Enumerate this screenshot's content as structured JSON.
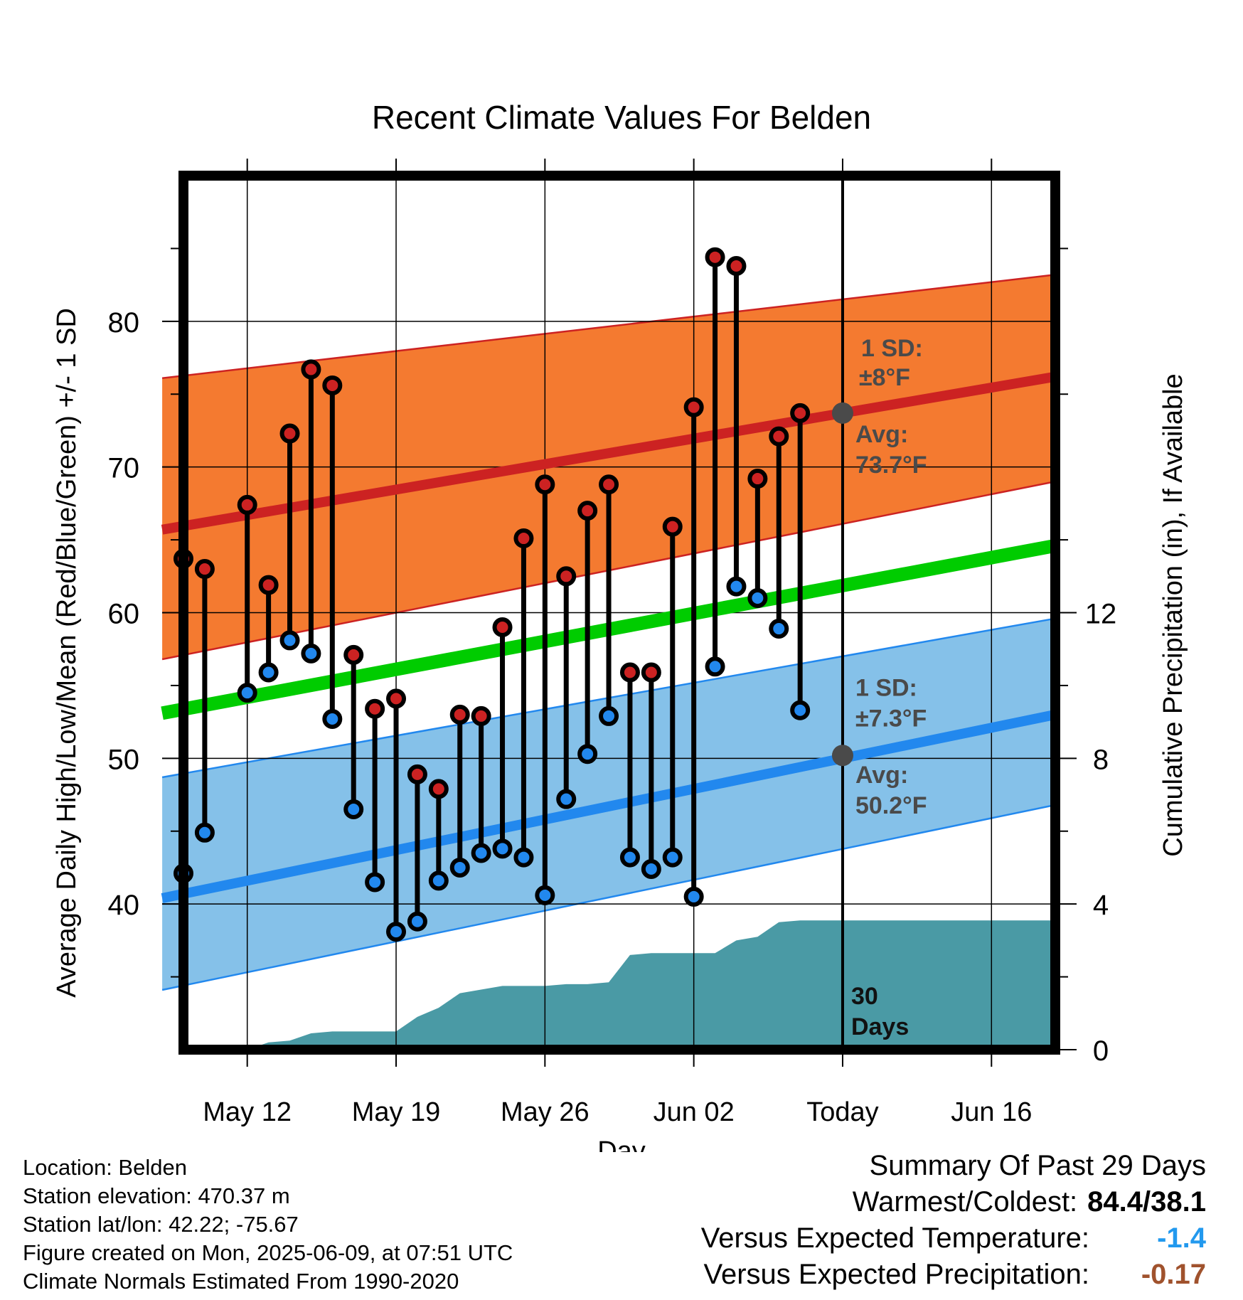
{
  "chart_data": {
    "type": "line",
    "title": "Recent Climate Values For Belden",
    "xlabel": "Day",
    "ylabel": "Average Daily High/Low/Mean (Red/Blue/Green) +/- 1 SD",
    "y2label": "Cumulative Precipitation (in), If Available",
    "xlim": [
      "May 08",
      "Jun 19"
    ],
    "ylim": [
      30,
      90
    ],
    "y2lim": [
      0,
      24
    ],
    "grid": true,
    "x_ticks": [
      "May 12",
      "May 19",
      "May 26",
      "Jun 02",
      "Today",
      "Jun 16"
    ],
    "y_ticks": [
      40,
      50,
      60,
      70,
      80
    ],
    "y2_ticks": [
      0,
      4,
      8,
      12
    ],
    "today": "Jun 09",
    "dates": [
      "May 09",
      "May 10",
      "May 11",
      "May 12",
      "May 13",
      "May 14",
      "May 15",
      "May 16",
      "May 17",
      "May 18",
      "May 19",
      "May 20",
      "May 21",
      "May 22",
      "May 23",
      "May 24",
      "May 25",
      "May 26",
      "May 27",
      "May 28",
      "May 29",
      "May 30",
      "May 31",
      "Jun 01",
      "Jun 02",
      "Jun 03",
      "Jun 04",
      "Jun 05",
      "Jun 06",
      "Jun 07",
      "Jun 08",
      "Jun 09",
      "Jun 10",
      "Jun 11",
      "Jun 12",
      "Jun 13",
      "Jun 14",
      "Jun 15",
      "Jun 16",
      "Jun 17",
      "Jun 18",
      "Jun 19"
    ],
    "observations": [
      {
        "date": "May 09",
        "high": 63.7,
        "low": 42.1
      },
      {
        "date": "May 10",
        "high": 63.0,
        "low": 44.9
      },
      {
        "date": "May 12",
        "high": 67.4,
        "low": 54.5
      },
      {
        "date": "May 13",
        "high": 61.9,
        "low": 55.9
      },
      {
        "date": "May 14",
        "high": 72.3,
        "low": 58.1
      },
      {
        "date": "May 15",
        "high": 76.7,
        "low": 57.2
      },
      {
        "date": "May 16",
        "high": 75.6,
        "low": 52.7
      },
      {
        "date": "May 17",
        "high": 57.1,
        "low": 46.5
      },
      {
        "date": "May 18",
        "high": 53.4,
        "low": 41.5
      },
      {
        "date": "May 19",
        "high": 54.1,
        "low": 38.1
      },
      {
        "date": "May 20",
        "high": 48.9,
        "low": 38.8
      },
      {
        "date": "May 21",
        "high": 47.9,
        "low": 41.6
      },
      {
        "date": "May 22",
        "high": 53.0,
        "low": 42.5
      },
      {
        "date": "May 23",
        "high": 52.9,
        "low": 43.5
      },
      {
        "date": "May 24",
        "high": 59.0,
        "low": 43.8
      },
      {
        "date": "May 25",
        "high": 65.1,
        "low": 43.2
      },
      {
        "date": "May 26",
        "high": 68.8,
        "low": 40.6
      },
      {
        "date": "May 27",
        "high": 62.5,
        "low": 47.2
      },
      {
        "date": "May 28",
        "high": 67.0,
        "low": 50.3
      },
      {
        "date": "May 29",
        "high": 68.8,
        "low": 52.9
      },
      {
        "date": "May 30",
        "high": 55.9,
        "low": 43.2
      },
      {
        "date": "May 31",
        "high": 55.9,
        "low": 42.4
      },
      {
        "date": "Jun 01",
        "high": 65.9,
        "low": 43.2
      },
      {
        "date": "Jun 02",
        "high": 74.1,
        "low": 40.5
      },
      {
        "date": "Jun 03",
        "high": 84.4,
        "low": 56.3
      },
      {
        "date": "Jun 04",
        "high": 83.8,
        "low": 61.8
      },
      {
        "date": "Jun 05",
        "high": 69.2,
        "low": 61.0
      },
      {
        "date": "Jun 06",
        "high": 72.1,
        "low": 58.9
      },
      {
        "date": "Jun 07",
        "high": 73.7,
        "low": 53.3
      }
    ],
    "normals": {
      "dates": [
        "May 08",
        "Jun 19"
      ],
      "avg_high": [
        65.7,
        76.2
      ],
      "avg_high_plus_sd": [
        76.1,
        83.2
      ],
      "avg_high_minus_sd": [
        56.8,
        69.0
      ],
      "avg_mean": [
        53.1,
        64.6
      ],
      "avg_low": [
        40.4,
        53.0
      ],
      "avg_low_plus_sd": [
        48.7,
        59.6
      ],
      "avg_low_minus_sd": [
        34.1,
        46.8
      ]
    },
    "precip": {
      "dates": [
        "May 12",
        "May 13",
        "May 14",
        "May 15",
        "May 16",
        "May 17",
        "May 18",
        "May 19",
        "May 20",
        "May 21",
        "May 22",
        "May 23",
        "May 24",
        "May 25",
        "May 26",
        "May 27",
        "May 28",
        "May 29",
        "May 30",
        "May 31",
        "Jun 01",
        "Jun 02",
        "Jun 03",
        "Jun 04",
        "Jun 05",
        "Jun 06",
        "Jun 07",
        "Jun 08",
        "Jun 19"
      ],
      "cumulative": [
        0.0,
        0.2,
        0.25,
        0.45,
        0.5,
        0.5,
        0.5,
        0.5,
        0.9,
        1.15,
        1.55,
        1.65,
        1.75,
        1.75,
        1.75,
        1.8,
        1.8,
        1.85,
        2.6,
        2.65,
        2.65,
        2.65,
        2.65,
        3.0,
        3.1,
        3.5,
        3.55,
        3.55,
        3.55
      ]
    },
    "annotations": {
      "high_sd": "1 SD:",
      "high_sd_val": "±8°F",
      "high_avg": "Avg:",
      "high_avg_val": "73.7°F",
      "low_sd": "1 SD:",
      "low_sd_val": "±7.3°F",
      "low_avg": "Avg:",
      "low_avg_val": "50.2°F",
      "today_avg_high": 73.7,
      "today_avg_low": 50.2,
      "days_line1": "30",
      "days_line2": "Days"
    },
    "colors": {
      "high": "#cc2222",
      "low": "#2288ee",
      "mean": "#00cc00",
      "high_band": "#f47a30",
      "low_band": "#85c1e9",
      "precip": "#4a9aa5",
      "marker_avg": "#4a4a4a"
    }
  },
  "info": {
    "location": "Location: Belden",
    "elevation": "Station elevation: 470.37 m",
    "latlon": "Station lat/lon: 42.22; -75.67",
    "created": "Figure created on Mon, 2025-06-09, at 07:51 UTC",
    "normals": "Climate Normals Estimated From 1990-2020"
  },
  "summary": {
    "title": "Summary Of Past 29 Days",
    "warmest_coldest_label": "Warmest/Coldest:",
    "warmest_coldest_value": "84.4/38.1",
    "temp_label": "Versus Expected Temperature:",
    "temp_value": "-1.4",
    "temp_color": "#2299ee",
    "precip_label": "Versus Expected Precipitation:",
    "precip_value": "-0.17",
    "precip_color": "#a0522d"
  }
}
